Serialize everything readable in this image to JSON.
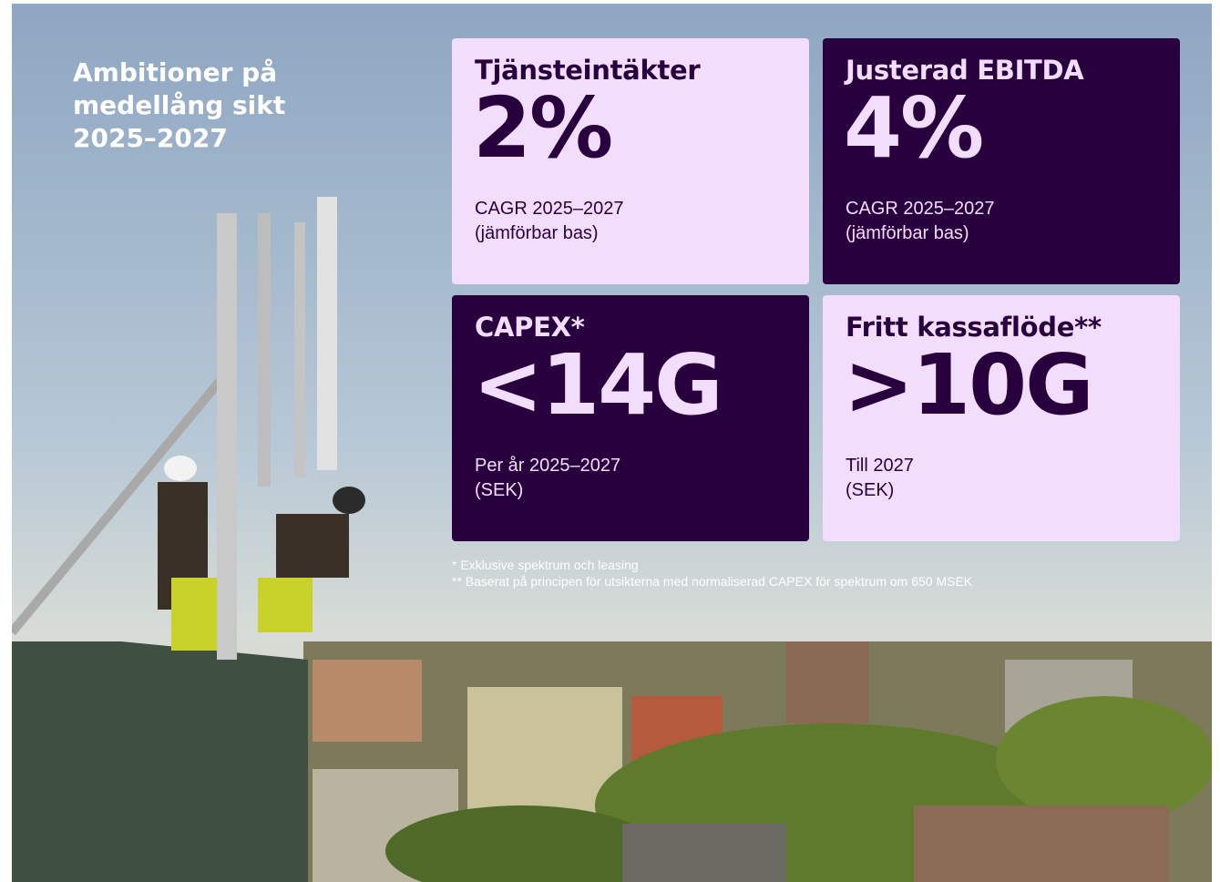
{
  "header": {
    "title": [
      "Ambitioner på",
      "medellång sikt",
      "2025–2027"
    ]
  },
  "cards": [
    {
      "title": "Tjänsteintäkter",
      "value": "2%",
      "notes": [
        "CAGR 2025–2027",
        "(jämförbar bas)"
      ]
    },
    {
      "title": "Justerad EBITDA",
      "value": "4%",
      "notes": [
        "CAGR 2025–2027",
        "(jämförbar bas)"
      ]
    },
    {
      "title": "CAPEX*",
      "value": "<14G",
      "notes": [
        "Per år 2025–2027",
        "(SEK)"
      ]
    },
    {
      "title": "Fritt kassaflöde**",
      "value": ">10G",
      "notes": [
        "Till 2027",
        "(SEK)"
      ]
    }
  ],
  "footnotes": [
    "* Exklusive spektrum och leasing",
    "** Baserat på principen för utsikterna med normaliserad CAPEX för spektrum om 650 MSEK"
  ]
}
